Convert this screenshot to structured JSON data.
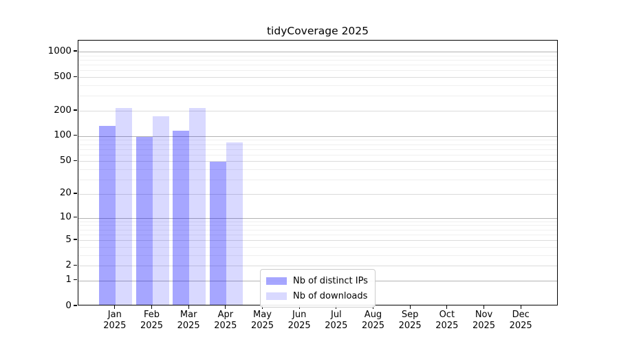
{
  "chart_data": {
    "type": "bar",
    "title": "tidyCoverage 2025",
    "xlabel": "",
    "ylabel": "",
    "categories": [
      "Jan 2025",
      "Feb 2025",
      "Mar 2025",
      "Apr 2025",
      "May 2025",
      "Jun 2025",
      "Jul 2025",
      "Aug 2025",
      "Sep 2025",
      "Oct 2025",
      "Nov 2025",
      "Dec 2025"
    ],
    "series": [
      {
        "name": "Nb of distinct IPs",
        "color": "rgba(0,0,255,0.35)",
        "values": [
          127,
          95,
          112,
          48,
          0,
          0,
          0,
          0,
          0,
          0,
          0,
          0
        ]
      },
      {
        "name": "Nb of downloads",
        "color": "rgba(0,0,255,0.15)",
        "values": [
          207,
          166,
          207,
          81,
          0,
          0,
          0,
          0,
          0,
          0,
          0,
          0
        ]
      }
    ],
    "y_scale": "log1p",
    "y_ticks": [
      0,
      1,
      2,
      5,
      10,
      20,
      50,
      100,
      200,
      500,
      1000
    ],
    "ylim": [
      0,
      1350
    ],
    "grid": true,
    "legend_position": "lower center",
    "colors": {
      "major_grid": "#b2b2b2",
      "mid_grid": "#dbdbdb",
      "minor_grid": "#efefef",
      "axis": "#000000",
      "background": "#ffffff"
    }
  }
}
